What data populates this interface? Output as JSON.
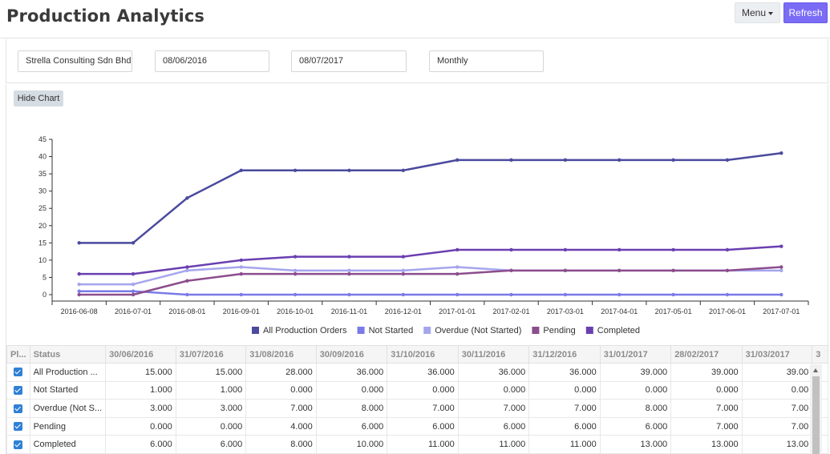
{
  "header": {
    "title": "Production Analytics",
    "menu_label": "Menu",
    "refresh_label": "Refresh",
    "refresh_color": "#7b6cf6"
  },
  "filters": {
    "company": "Strella Consulting Sdn Bhd",
    "date_from": "08/06/2016",
    "date_to": "08/07/2017",
    "period": "Monthly"
  },
  "chart_toggle_label": "Hide Chart",
  "chart_data": {
    "type": "line",
    "x": [
      "2016-06-08",
      "2016-07-01",
      "2016-08-01",
      "2016-09-01",
      "2016-10-01",
      "2016-11-01",
      "2016-12-01",
      "2017-01-01",
      "2017-02-01",
      "2017-03-01",
      "2017-04-01",
      "2017-05-01",
      "2017-06-01",
      "2017-07-01"
    ],
    "ylim": [
      0,
      45
    ],
    "yticks": [
      0,
      5,
      10,
      15,
      20,
      25,
      30,
      35,
      40,
      45
    ],
    "grid": false,
    "legend_position": "bottom",
    "series": [
      {
        "name": "All Production Orders",
        "color": "#4a4a9e",
        "values": [
          15,
          15,
          28,
          36,
          36,
          36,
          36,
          39,
          39,
          39,
          39,
          39,
          39,
          41
        ]
      },
      {
        "name": "Not Started",
        "color": "#7a7ae8",
        "values": [
          1,
          1,
          0,
          0,
          0,
          0,
          0,
          0,
          0,
          0,
          0,
          0,
          0,
          0
        ]
      },
      {
        "name": "Overdue (Not Started)",
        "color": "#a5a5ee",
        "values": [
          3,
          3,
          7,
          8,
          7,
          7,
          7,
          8,
          7,
          7,
          7,
          7,
          7,
          7
        ]
      },
      {
        "name": "Pending",
        "color": "#8c4d8c",
        "values": [
          0,
          0,
          4,
          6,
          6,
          6,
          6,
          6,
          7,
          7,
          7,
          7,
          7,
          8
        ]
      },
      {
        "name": "Completed",
        "color": "#6a3fb0",
        "values": [
          6,
          6,
          8,
          10,
          11,
          11,
          11,
          13,
          13,
          13,
          13,
          13,
          13,
          14
        ]
      }
    ]
  },
  "table": {
    "columns": [
      "Pl...",
      "Status",
      "30/06/2016",
      "31/07/2016",
      "31/08/2016",
      "30/09/2016",
      "31/10/2016",
      "30/11/2016",
      "31/12/2016",
      "31/01/2017",
      "28/02/2017",
      "31/03/2017",
      "3"
    ],
    "rows": [
      {
        "status": "All Production ...",
        "values": [
          "15.000",
          "15.000",
          "28.000",
          "36.000",
          "36.000",
          "36.000",
          "36.000",
          "39.000",
          "39.000",
          "39.00"
        ]
      },
      {
        "status": "Not Started",
        "values": [
          "1.000",
          "1.000",
          "0.000",
          "0.000",
          "0.000",
          "0.000",
          "0.000",
          "0.000",
          "0.000",
          "0.00"
        ]
      },
      {
        "status": "Overdue (Not S...",
        "values": [
          "3.000",
          "3.000",
          "7.000",
          "8.000",
          "7.000",
          "7.000",
          "7.000",
          "8.000",
          "7.000",
          "7.00"
        ]
      },
      {
        "status": "Pending",
        "values": [
          "0.000",
          "0.000",
          "4.000",
          "6.000",
          "6.000",
          "6.000",
          "6.000",
          "6.000",
          "7.000",
          "7.00"
        ]
      },
      {
        "status": "Completed",
        "values": [
          "6.000",
          "6.000",
          "8.000",
          "10.000",
          "11.000",
          "11.000",
          "11.000",
          "13.000",
          "13.000",
          "13.00"
        ]
      }
    ]
  }
}
